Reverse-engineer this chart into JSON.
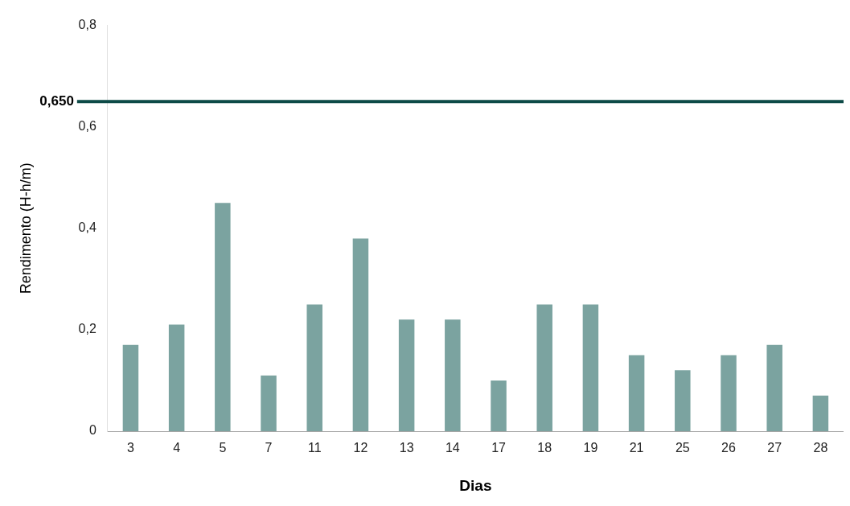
{
  "chart_data": {
    "type": "bar",
    "xlabel": "Dias",
    "ylabel": "Rendimento (H-h/m)",
    "categories": [
      "3",
      "4",
      "5",
      "7",
      "11",
      "12",
      "13",
      "14",
      "17",
      "18",
      "19",
      "21",
      "25",
      "26",
      "27",
      "28"
    ],
    "values": [
      0.17,
      0.21,
      0.45,
      0.11,
      0.25,
      0.38,
      0.22,
      0.22,
      0.1,
      0.25,
      0.25,
      0.15,
      0.12,
      0.15,
      0.17,
      0.07
    ],
    "color": "#7ba3a0",
    "ylim": [
      0,
      0.8
    ],
    "yticks": [
      0,
      {
        "value": 0.2,
        "label": "0,2"
      },
      {
        "value": 0.4,
        "label": "0,4"
      },
      {
        "value": 0.6,
        "label": "0,6"
      },
      {
        "value": 0.8,
        "label": "0,8"
      }
    ],
    "ref_lines": [
      {
        "axis": "y",
        "value": 0.65,
        "label": "0,650",
        "color": "#0d4a47"
      }
    ],
    "grid": false,
    "legend": false
  }
}
